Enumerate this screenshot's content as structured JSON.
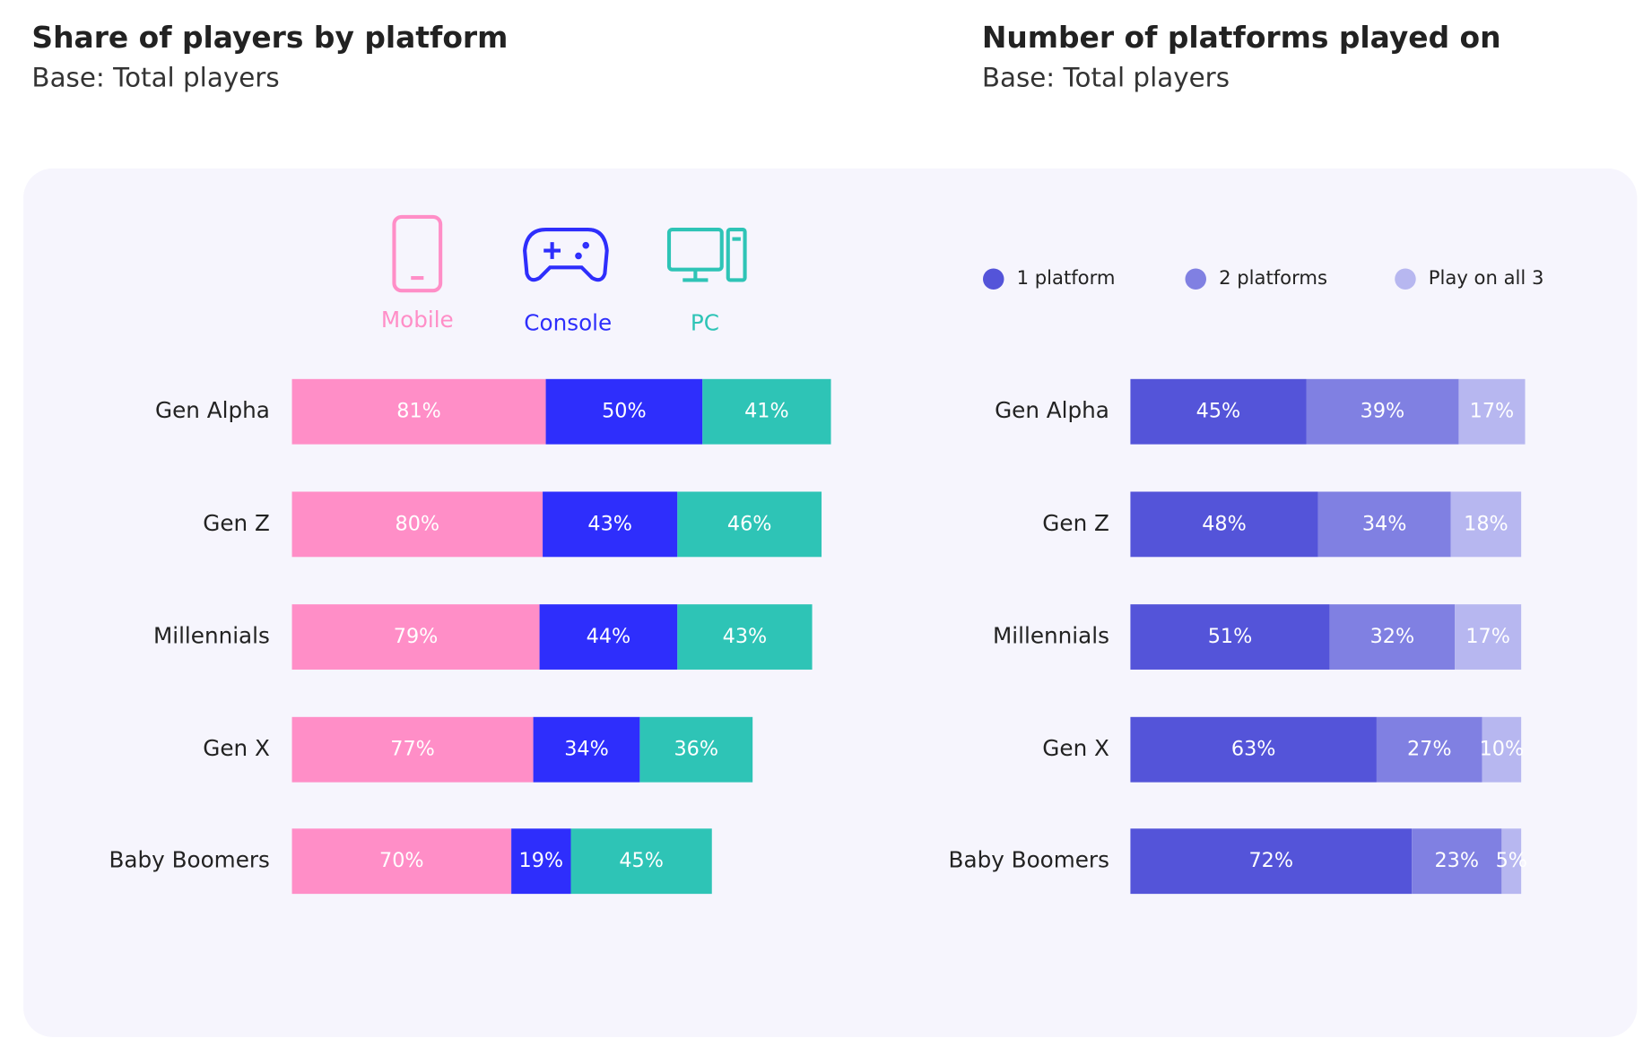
{
  "chart_data": [
    {
      "type": "stacked-bar",
      "title": "Share of players by platform",
      "subtitle": "Base: Total players",
      "categories": [
        "Gen Alpha",
        "Gen Z",
        "Millennials",
        "Gen X",
        "Baby Boomers"
      ],
      "series": [
        {
          "name": "Mobile",
          "color": "#ff8ec7",
          "values": [
            81,
            80,
            79,
            77,
            70
          ],
          "value_labels": [
            "81%",
            "80%",
            "79%",
            "77%",
            "70%"
          ]
        },
        {
          "name": "Console",
          "color": "#2e2efc",
          "values": [
            50,
            43,
            44,
            34,
            19
          ],
          "value_labels": [
            "50%",
            "43%",
            "44%",
            "34%",
            "19%"
          ]
        },
        {
          "name": "PC",
          "color": "#2ec4b6",
          "values": [
            41,
            46,
            43,
            36,
            45
          ],
          "value_labels": [
            "41%",
            "46%",
            "43%",
            "36%",
            "45%"
          ]
        }
      ],
      "legend": "icons"
    },
    {
      "type": "stacked-bar",
      "title": "Number of platforms played on",
      "subtitle": "Base: Total players",
      "categories": [
        "Gen Alpha",
        "Gen Z",
        "Millennials",
        "Gen X",
        "Baby Boomers"
      ],
      "series": [
        {
          "name": "1 platform",
          "color": "#5454d9",
          "values": [
            45,
            48,
            51,
            63,
            72
          ],
          "value_labels": [
            "45%",
            "48%",
            "51%",
            "63%",
            "72%"
          ]
        },
        {
          "name": "2 platforms",
          "color": "#8080e2",
          "values": [
            39,
            34,
            32,
            27,
            23
          ],
          "value_labels": [
            "39%",
            "34%",
            "32%",
            "27%",
            "23%"
          ]
        },
        {
          "name": "Play on all 3",
          "color": "#b7b7f0",
          "values": [
            17,
            18,
            17,
            10,
            5
          ],
          "value_labels": [
            "17%",
            "18%",
            "17%",
            "10%",
            "5%"
          ]
        }
      ],
      "legend": "dots"
    }
  ]
}
